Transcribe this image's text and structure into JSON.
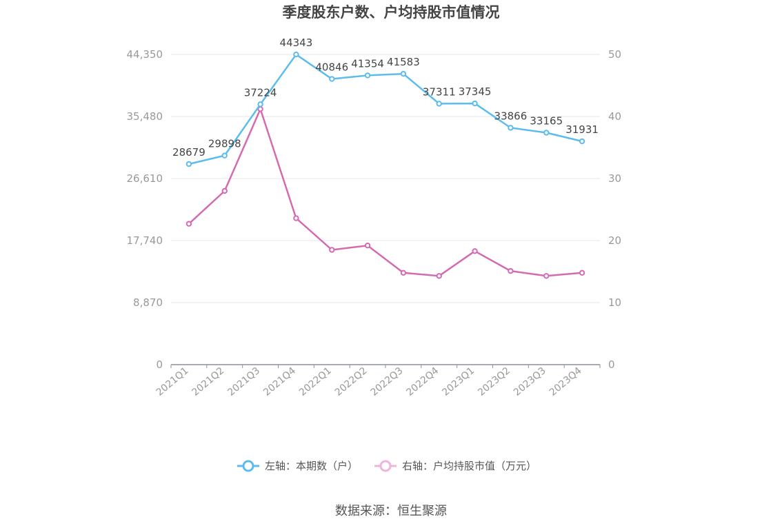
{
  "chart_data": {
    "type": "line",
    "title": "季度股东户数、户均持股市值情况",
    "categories": [
      "2021Q1",
      "2021Q2",
      "2021Q3",
      "2021Q4",
      "2022Q1",
      "2022Q2",
      "2022Q3",
      "2022Q4",
      "2023Q1",
      "2023Q2",
      "2023Q3",
      "2023Q4"
    ],
    "left_axis": {
      "min": 0,
      "max": 44350,
      "ticks": [
        0,
        8870,
        17740,
        26610,
        35480,
        44350
      ],
      "tick_labels": [
        "0",
        "8,870",
        "17,740",
        "26,610",
        "35,480",
        "44,350"
      ]
    },
    "right_axis": {
      "min": 0,
      "max": 50,
      "ticks": [
        0,
        10,
        20,
        30,
        40,
        50
      ],
      "tick_labels": [
        "0",
        "10",
        "20",
        "30",
        "40",
        "50"
      ]
    },
    "grid": true,
    "legend_position": "bottom",
    "series": [
      {
        "name": "左轴：本期数（户）",
        "axis": "left",
        "color": "#5bbcee",
        "values": [
          28679,
          29898,
          37224,
          44343,
          40846,
          41354,
          41583,
          37311,
          37345,
          33866,
          33165,
          31931
        ],
        "data_labels": [
          "28679",
          "29898",
          "37224",
          "44343",
          "40846",
          "41354",
          "41583",
          "37311",
          "37345",
          "33866",
          "33165",
          "31931"
        ]
      },
      {
        "name": "右轴：户均持股市值（万元）",
        "axis": "right",
        "color": "#d46ab0",
        "values": [
          22.7,
          28.0,
          41.2,
          23.6,
          18.5,
          19.2,
          14.8,
          14.3,
          18.3,
          15.1,
          14.3,
          14.8
        ]
      }
    ]
  },
  "legend": {
    "left_label": "左轴：本期数（户）",
    "right_label": "右轴：户均持股市值（万元）",
    "right_marker_color": "#efb5d8"
  },
  "source": "数据来源：恒生聚源"
}
